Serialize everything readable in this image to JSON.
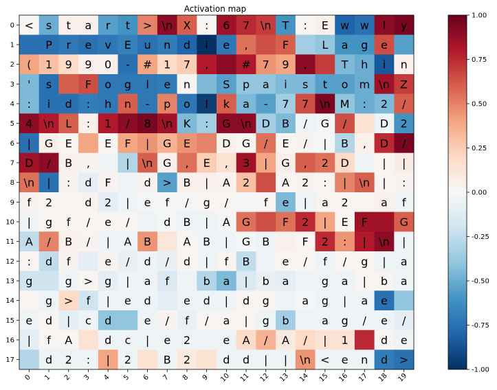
{
  "chart_data": {
    "type": "heatmap",
    "title": "Activation map",
    "xlabel": "",
    "ylabel": "",
    "x_ticks": [
      "0",
      "1",
      "2",
      "3",
      "4",
      "5",
      "6",
      "7",
      "8",
      "9",
      "10",
      "11",
      "12",
      "13",
      "14",
      "15",
      "16",
      "17",
      "18",
      "19"
    ],
    "y_ticks": [
      "0",
      "1",
      "2",
      "3",
      "4",
      "5",
      "6",
      "7",
      "8",
      "9",
      "10",
      "11",
      "12",
      "13",
      "14",
      "15",
      "16",
      "17"
    ],
    "colorbar": {
      "range": [
        -1.0,
        1.0
      ],
      "ticks": [
        "-1.00",
        "-0.75",
        "-0.50",
        "-0.25",
        "0.00",
        "0.25",
        "0.50",
        "0.75",
        "1.00"
      ],
      "tick_values": [
        -1.0,
        -0.75,
        -0.5,
        -0.25,
        0.0,
        0.25,
        0.5,
        0.75,
        1.0
      ],
      "colormap": "RdBu_r"
    },
    "tokens": [
      [
        "<",
        "s",
        "t",
        "a",
        "r",
        "t",
        ">",
        "\\n",
        "X",
        ":",
        "6",
        "7",
        "\\n",
        "T",
        ":",
        "E",
        "w",
        "w",
        "l",
        "y"
      ],
      [
        "",
        "P",
        "r",
        "e",
        "v",
        "E",
        "u",
        "n",
        "d",
        "i",
        "e",
        ",",
        "",
        "F",
        "",
        "L",
        "a",
        "g",
        "e",
        ""
      ],
      [
        "(",
        "1",
        "9",
        "9",
        "0",
        "-",
        "#",
        "1",
        "7",
        ",",
        "",
        "#",
        "7",
        "9",
        ",",
        "",
        "T",
        "h",
        "i",
        "n"
      ],
      [
        "'",
        "s",
        "",
        "F",
        "o",
        "g",
        "l",
        "e",
        "n",
        "",
        "S",
        "p",
        "a",
        "i",
        "s",
        "t",
        "o",
        "m",
        "\\n",
        "Z"
      ],
      [
        ":",
        "i",
        "d",
        ":",
        "h",
        "n",
        "-",
        "p",
        "o",
        "l",
        "k",
        "a",
        "-",
        "7",
        "7",
        "\\n",
        "M",
        ":",
        "2",
        "/"
      ],
      [
        "4",
        "\\n",
        "L",
        ":",
        "1",
        "/",
        "8",
        "\\n",
        "K",
        ":",
        "G",
        "\\n",
        "D",
        "B",
        "/",
        "G",
        "/",
        "",
        "D",
        "2"
      ],
      [
        "|",
        "G",
        "E",
        "",
        "E",
        "F",
        "|",
        "G",
        "E",
        "",
        "D",
        "G",
        "/",
        "E",
        "/",
        "|",
        "B",
        ",",
        "D",
        "/"
      ],
      [
        "D",
        "/",
        "B",
        ",",
        "",
        "|",
        "\\n",
        "G",
        ",",
        "E",
        ",",
        "3",
        "|",
        "G",
        ",",
        "2",
        "D",
        "",
        "|",
        "|"
      ],
      [
        "\\n",
        "|",
        ":",
        "d",
        "F",
        "",
        "d",
        ">",
        "B",
        "|",
        "A",
        "2",
        "",
        "A",
        "2",
        ":",
        "|",
        "\\n",
        "|",
        ":"
      ],
      [
        "f",
        "2",
        "",
        "d",
        "2",
        "|",
        "e",
        "f",
        "/",
        "g",
        "/",
        "",
        "f",
        "e",
        "|",
        "a",
        "2",
        "",
        "a",
        "f"
      ],
      [
        "|",
        "g",
        "f",
        "/",
        "e",
        "/",
        "",
        "d",
        "B",
        "|",
        "A",
        "G",
        "",
        "F",
        "2",
        "|",
        "E",
        "F",
        "",
        "G"
      ],
      [
        "A",
        "/",
        "B",
        "/",
        "|",
        "A",
        "B",
        "",
        "A",
        "B",
        "|",
        "G",
        "B",
        "",
        "F",
        "2",
        ":",
        "|",
        "\\n",
        "|"
      ],
      [
        ":",
        "d",
        "f",
        "",
        "e",
        "/",
        "d",
        "/",
        "d",
        "|",
        "f",
        "B",
        "",
        "e",
        "/",
        "f",
        "/",
        "g",
        "|",
        "a"
      ],
      [
        "g",
        "",
        "g",
        ">",
        "g",
        "|",
        "a",
        "f",
        "",
        "b",
        "a",
        "|",
        "b",
        "a",
        "",
        "g",
        "a",
        "|",
        "b",
        "a"
      ],
      [
        "",
        "g",
        ">",
        "f",
        "|",
        "e",
        "d",
        "",
        "e",
        "d",
        "|",
        "d",
        "g",
        "",
        "a",
        "g",
        "|",
        "a",
        "e",
        ""
      ],
      [
        "e",
        "d",
        "|",
        "c",
        "d",
        "",
        "e",
        "/",
        "f",
        "/",
        "a",
        "|",
        "g",
        "b",
        "",
        "a",
        "g",
        "/",
        "e",
        "/"
      ],
      [
        "|",
        "f",
        "A",
        "",
        "d",
        "c",
        "|",
        "e",
        "2",
        "",
        "e",
        "A",
        "/",
        "A",
        "/",
        "|",
        "1",
        "",
        "d",
        "e"
      ],
      [
        "",
        "d",
        "2",
        ":",
        "|",
        "2",
        "",
        "B",
        "2",
        "",
        "d",
        "d",
        "|",
        "|",
        "\\n",
        "<",
        "e",
        "n",
        "d",
        ">"
      ]
    ],
    "values": [
      [
        0.02,
        -0.5,
        0.05,
        0.05,
        -0.55,
        -0.6,
        0.5,
        0.9,
        0.6,
        0.02,
        0.85,
        0.75,
        0.7,
        -0.6,
        0.02,
        0.05,
        -0.8,
        -0.75,
        0.9,
        0.95
      ],
      [
        -0.75,
        -0.75,
        -0.72,
        -0.75,
        -0.72,
        -0.68,
        -0.75,
        -0.7,
        -0.8,
        -1.0,
        -0.72,
        0.55,
        0.65,
        0.6,
        -0.35,
        -0.4,
        -0.6,
        -0.6,
        0.65,
        -0.55
      ],
      [
        0.4,
        0.3,
        0.2,
        0.05,
        0.05,
        -0.75,
        0.4,
        0.2,
        0.25,
        0.8,
        0.9,
        0.8,
        0.45,
        0.4,
        0.9,
        0.7,
        -0.45,
        -0.5,
        -0.85,
        0.05
      ],
      [
        -0.45,
        -0.75,
        0.6,
        0.65,
        -0.72,
        -0.72,
        -0.72,
        -0.7,
        0.02,
        -0.45,
        -0.55,
        -0.4,
        -0.4,
        -0.45,
        -0.45,
        -0.55,
        -0.55,
        -0.5,
        0.85,
        0.7
      ],
      [
        -0.45,
        -0.75,
        -0.75,
        -0.7,
        -0.72,
        0.6,
        -0.72,
        0.5,
        -0.72,
        -0.95,
        0.6,
        -0.45,
        -0.55,
        -0.35,
        0.65,
        0.95,
        -0.4,
        -0.5,
        -0.45,
        0.6
      ],
      [
        0.9,
        0.8,
        0.6,
        0.05,
        0.8,
        0.9,
        0.95,
        0.85,
        -0.45,
        -0.35,
        0.9,
        0.9,
        -0.35,
        -0.45,
        -0.05,
        -0.02,
        0.65,
        0.15,
        -0.05,
        -0.6
      ],
      [
        -0.75,
        0.05,
        0.02,
        0.4,
        0.02,
        0.4,
        0.45,
        0.35,
        0.45,
        0.5,
        0.05,
        0.02,
        0.55,
        0.02,
        0.03,
        -0.02,
        -0.3,
        0.05,
        0.75,
        0.95
      ],
      [
        0.85,
        0.9,
        0.05,
        0.03,
        -0.05,
        -0.3,
        0.6,
        0.05,
        0.55,
        0.25,
        0.15,
        0.85,
        0.4,
        0.05,
        0.6,
        0.55,
        0.2,
        -0.05,
        0.02,
        0.08
      ],
      [
        0.55,
        -0.75,
        0.03,
        -0.1,
        0.03,
        -0.05,
        0.03,
        -0.55,
        0.05,
        0.05,
        0.03,
        0.3,
        0.65,
        0.02,
        0.03,
        0.02,
        0.5,
        0.6,
        0.02,
        0.03
      ],
      [
        0.03,
        0.02,
        0.02,
        0.03,
        -0.1,
        -0.05,
        -0.02,
        -0.02,
        -0.02,
        0.02,
        0.02,
        -0.02,
        0.02,
        -0.45,
        -0.05,
        0.02,
        0.02,
        0.02,
        0.05,
        -0.05
      ],
      [
        -0.05,
        0.02,
        0.02,
        0.02,
        0.02,
        0.02,
        -0.05,
        -0.02,
        -0.05,
        -0.05,
        -0.02,
        0.55,
        0.65,
        0.55,
        0.75,
        0.4,
        0.02,
        0.85,
        0.85,
        0.6
      ],
      [
        -0.25,
        0.5,
        0.05,
        0.03,
        -0.05,
        -0.05,
        0.45,
        0.12,
        0.02,
        -0.05,
        -0.05,
        -0.02,
        -0.05,
        0.05,
        0.02,
        0.75,
        0.45,
        0.8,
        0.9,
        -0.03
      ],
      [
        0.02,
        -0.25,
        0.03,
        -0.1,
        0.03,
        -0.08,
        -0.05,
        -0.08,
        0.02,
        -0.05,
        0.02,
        -0.25,
        -0.05,
        0.02,
        0.02,
        -0.05,
        0.02,
        0.02,
        -0.05,
        -0.05
      ],
      [
        -0.2,
        -0.2,
        -0.05,
        0.02,
        -0.1,
        -0.05,
        -0.05,
        -0.15,
        -0.05,
        -0.3,
        -0.45,
        -0.15,
        -0.08,
        -0.1,
        -0.05,
        -0.05,
        -0.05,
        0.02,
        0.02,
        -0.05
      ],
      [
        0.02,
        -0.05,
        0.2,
        -0.2,
        -0.05,
        -0.05,
        -0.05,
        -0.1,
        -0.05,
        -0.05,
        -0.05,
        0.02,
        0.02,
        -0.05,
        -0.02,
        -0.05,
        -0.05,
        -0.05,
        -0.75,
        -0.4
      ],
      [
        -0.05,
        0.02,
        -0.1,
        -0.05,
        -0.4,
        -0.4,
        -0.05,
        0.03,
        -0.08,
        0.02,
        0.02,
        0.02,
        -0.05,
        -0.35,
        -0.05,
        -0.05,
        -0.05,
        -0.05,
        -0.05,
        -0.1
      ],
      [
        -0.1,
        0.02,
        0.02,
        0.15,
        -0.05,
        -0.05,
        -0.05,
        -0.05,
        -0.05,
        -0.05,
        -0.05,
        0.2,
        0.35,
        0.1,
        0.2,
        0.15,
        0.15,
        0.75,
        0.02,
        -0.05
      ],
      [
        -0.3,
        -0.05,
        -0.05,
        -0.05,
        0.4,
        -0.05,
        0.15,
        -0.05,
        0.1,
        0.15,
        -0.05,
        -0.05,
        -0.05,
        -0.05,
        0.45,
        -0.05,
        -0.05,
        -0.05,
        -0.7,
        -0.75
      ]
    ]
  }
}
